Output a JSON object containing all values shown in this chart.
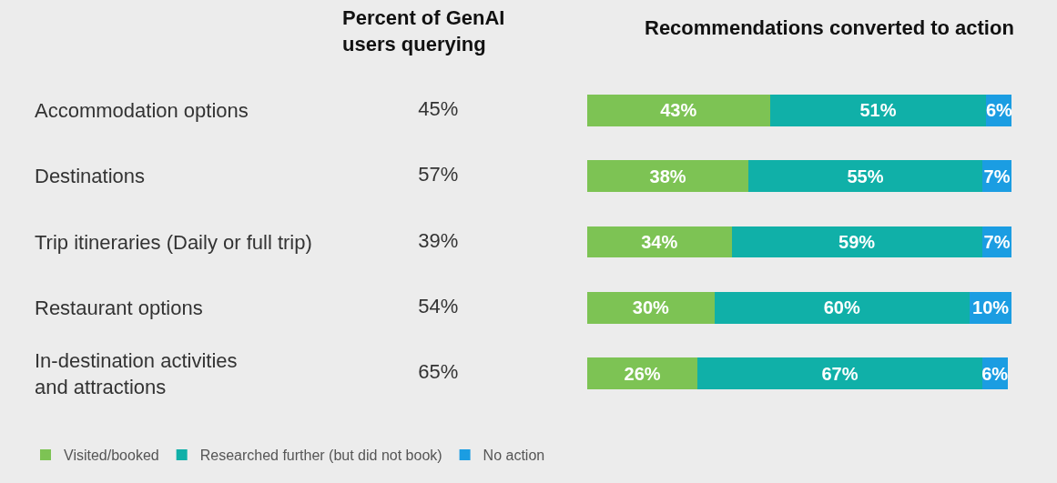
{
  "chart_data": [
    {
      "type": "other",
      "title": "Percent of GenAI users querying",
      "value_labels": [
        "45%",
        "57%",
        "39%",
        "54%",
        "65%"
      ]
    },
    {
      "type": "bar",
      "title": "Recommendations converted to action",
      "orientation": "horizontal",
      "stacked": true,
      "categories": [
        "Accommodation options",
        "Destinations",
        "Trip itineraries (Daily or full trip)",
        "Restaurant options",
        "In-destination activities and attractions"
      ],
      "legend": "bottom left",
      "series": [
        {
          "name": "Visited/booked",
          "color": "#7dc354",
          "values": [
            43,
            38,
            34,
            30,
            26
          ],
          "value_labels": [
            "43%",
            "38%",
            "34%",
            "30%",
            "26%"
          ]
        },
        {
          "name": "Researched further (but did not book)",
          "color": "#10b0a8",
          "values": [
            51,
            55,
            59,
            60,
            67
          ],
          "value_labels": [
            "51%",
            "55%",
            "59%",
            "60%",
            "67%"
          ]
        },
        {
          "name": "No action",
          "color": "#1b9de2",
          "values": [
            6,
            7,
            7,
            10,
            6
          ],
          "value_labels": [
            "6%",
            "7%",
            "7%",
            "10%",
            "6%"
          ]
        }
      ]
    }
  ]
}
